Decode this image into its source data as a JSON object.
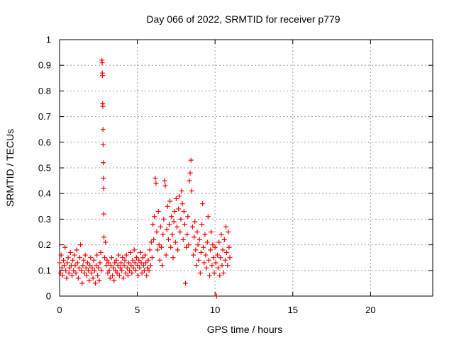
{
  "chart_data": {
    "type": "scatter",
    "title": "Day 066 of 2022, SRMTID for receiver p779",
    "xlabel": "GPS time / hours",
    "ylabel": "SRMTID / TECUs",
    "xlim": [
      0,
      24
    ],
    "ylim": [
      0,
      1
    ],
    "xticks": [
      0,
      5,
      10,
      15,
      20
    ],
    "xtick_labels": [
      "0",
      "5",
      "10",
      "15",
      "20"
    ],
    "yticks": [
      0,
      0.1,
      0.2,
      0.3,
      0.4,
      0.5,
      0.6,
      0.7,
      0.8,
      0.9,
      1
    ],
    "ytick_labels": [
      "0",
      "0.1",
      "0.2",
      "0.3",
      "0.4",
      "0.5",
      "0.6",
      "0.7",
      "0.8",
      "0.9",
      "1"
    ],
    "grid": true,
    "marker": "plus",
    "color": "#ff0000",
    "series": [
      {
        "name": "SRMTID",
        "points": [
          [
            0.0,
            0.13
          ],
          [
            0.05,
            0.09
          ],
          [
            0.1,
            0.16
          ],
          [
            0.15,
            0.11
          ],
          [
            0.2,
            0.08
          ],
          [
            0.25,
            0.14
          ],
          [
            0.3,
            0.12
          ],
          [
            0.35,
            0.19
          ],
          [
            0.4,
            0.1
          ],
          [
            0.45,
            0.07
          ],
          [
            0.5,
            0.13
          ],
          [
            0.55,
            0.15
          ],
          [
            0.6,
            0.09
          ],
          [
            0.65,
            0.11
          ],
          [
            0.7,
            0.17
          ],
          [
            0.75,
            0.12
          ],
          [
            0.8,
            0.08
          ],
          [
            0.85,
            0.14
          ],
          [
            0.9,
            0.1
          ],
          [
            0.95,
            0.16
          ],
          [
            1.0,
            0.12
          ],
          [
            1.05,
            0.09
          ],
          [
            1.1,
            0.18
          ],
          [
            1.15,
            0.13
          ],
          [
            1.2,
            0.07
          ],
          [
            1.25,
            0.11
          ],
          [
            1.3,
            0.15
          ],
          [
            1.35,
            0.2
          ],
          [
            1.4,
            0.1
          ],
          [
            1.45,
            0.05
          ],
          [
            1.5,
            0.12
          ],
          [
            1.55,
            0.14
          ],
          [
            1.6,
            0.09
          ],
          [
            1.65,
            0.16
          ],
          [
            1.7,
            0.11
          ],
          [
            1.75,
            0.08
          ],
          [
            1.8,
            0.13
          ],
          [
            1.85,
            0.1
          ],
          [
            1.9,
            0.06
          ],
          [
            1.95,
            0.12
          ],
          [
            2.0,
            0.15
          ],
          [
            2.05,
            0.09
          ],
          [
            2.1,
            0.11
          ],
          [
            2.15,
            0.07
          ],
          [
            2.2,
            0.14
          ],
          [
            2.25,
            0.1
          ],
          [
            2.3,
            0.05
          ],
          [
            2.35,
            0.12
          ],
          [
            2.4,
            0.16
          ],
          [
            2.45,
            0.08
          ],
          [
            2.5,
            0.11
          ],
          [
            2.55,
            0.06
          ],
          [
            2.6,
            0.13
          ],
          [
            2.65,
            0.17
          ],
          [
            2.7,
            0.1
          ],
          [
            2.72,
            0.92
          ],
          [
            2.74,
            0.91
          ],
          [
            2.75,
            0.87
          ],
          [
            2.76,
            0.86
          ],
          [
            2.77,
            0.75
          ],
          [
            2.78,
            0.74
          ],
          [
            2.79,
            0.65
          ],
          [
            2.8,
            0.59
          ],
          [
            2.81,
            0.52
          ],
          [
            2.82,
            0.46
          ],
          [
            2.83,
            0.42
          ],
          [
            2.84,
            0.32
          ],
          [
            2.85,
            0.23
          ],
          [
            2.9,
            0.15
          ],
          [
            2.95,
            0.21
          ],
          [
            3.0,
            0.12
          ],
          [
            3.05,
            0.14
          ],
          [
            3.1,
            0.09
          ],
          [
            3.15,
            0.13
          ],
          [
            3.2,
            0.1
          ],
          [
            3.25,
            0.07
          ],
          [
            3.3,
            0.12
          ],
          [
            3.35,
            0.15
          ],
          [
            3.4,
            0.08
          ],
          [
            3.45,
            0.11
          ],
          [
            3.5,
            0.06
          ],
          [
            3.55,
            0.13
          ],
          [
            3.6,
            0.1
          ],
          [
            3.65,
            0.14
          ],
          [
            3.7,
            0.09
          ],
          [
            3.75,
            0.12
          ],
          [
            3.8,
            0.16
          ],
          [
            3.85,
            0.08
          ],
          [
            3.9,
            0.11
          ],
          [
            3.95,
            0.13
          ],
          [
            4.0,
            0.1
          ],
          [
            4.05,
            0.15
          ],
          [
            4.1,
            0.07
          ],
          [
            4.15,
            0.12
          ],
          [
            4.2,
            0.14
          ],
          [
            4.25,
            0.09
          ],
          [
            4.3,
            0.16
          ],
          [
            4.35,
            0.11
          ],
          [
            4.4,
            0.08
          ],
          [
            4.45,
            0.13
          ],
          [
            4.5,
            0.1
          ],
          [
            4.55,
            0.17
          ],
          [
            4.6,
            0.12
          ],
          [
            4.65,
            0.09
          ],
          [
            4.7,
            0.14
          ],
          [
            4.75,
            0.11
          ],
          [
            4.8,
            0.18
          ],
          [
            4.85,
            0.13
          ],
          [
            4.9,
            0.1
          ],
          [
            4.95,
            0.15
          ],
          [
            5.0,
            0.12
          ],
          [
            5.05,
            0.08
          ],
          [
            5.1,
            0.14
          ],
          [
            5.15,
            0.11
          ],
          [
            5.2,
            0.17
          ],
          [
            5.25,
            0.13
          ],
          [
            5.3,
            0.09
          ],
          [
            5.35,
            0.15
          ],
          [
            5.4,
            0.12
          ],
          [
            5.45,
            0.1
          ],
          [
            5.5,
            0.16
          ],
          [
            5.55,
            0.13
          ],
          [
            5.6,
            0.08
          ],
          [
            5.65,
            0.11
          ],
          [
            5.7,
            0.14
          ],
          [
            5.75,
            0.1
          ],
          [
            5.8,
            0.18
          ],
          [
            5.85,
            0.12
          ],
          [
            5.9,
            0.21
          ],
          [
            5.95,
            0.15
          ],
          [
            6.0,
            0.28
          ],
          [
            6.05,
            0.22
          ],
          [
            6.1,
            0.31
          ],
          [
            6.15,
            0.46
          ],
          [
            6.2,
            0.44
          ],
          [
            6.25,
            0.25
          ],
          [
            6.3,
            0.18
          ],
          [
            6.35,
            0.33
          ],
          [
            6.4,
            0.2
          ],
          [
            6.45,
            0.14
          ],
          [
            6.5,
            0.27
          ],
          [
            6.55,
            0.19
          ],
          [
            6.6,
            0.12
          ],
          [
            6.65,
            0.24
          ],
          [
            6.7,
            0.3
          ],
          [
            6.75,
            0.45
          ],
          [
            6.8,
            0.43
          ],
          [
            6.85,
            0.16
          ],
          [
            6.9,
            0.26
          ],
          [
            6.95,
            0.35
          ],
          [
            7.0,
            0.22
          ],
          [
            7.05,
            0.28
          ],
          [
            7.1,
            0.37
          ],
          [
            7.15,
            0.19
          ],
          [
            7.2,
            0.31
          ],
          [
            7.25,
            0.24
          ],
          [
            7.3,
            0.15
          ],
          [
            7.35,
            0.29
          ],
          [
            7.4,
            0.33
          ],
          [
            7.45,
            0.21
          ],
          [
            7.5,
            0.38
          ],
          [
            7.55,
            0.27
          ],
          [
            7.6,
            0.18
          ],
          [
            7.65,
            0.34
          ],
          [
            7.7,
            0.39
          ],
          [
            7.75,
            0.25
          ],
          [
            7.8,
            0.3
          ],
          [
            7.85,
            0.41
          ],
          [
            7.9,
            0.36
          ],
          [
            7.95,
            0.22
          ],
          [
            8.0,
            0.33
          ],
          [
            8.05,
            0.28
          ],
          [
            8.1,
            0.05
          ],
          [
            8.15,
            0.19
          ],
          [
            8.2,
            0.24
          ],
          [
            8.25,
            0.31
          ],
          [
            8.3,
            0.2
          ],
          [
            8.35,
            0.45
          ],
          [
            8.4,
            0.48
          ],
          [
            8.45,
            0.53
          ],
          [
            8.5,
            0.41
          ],
          [
            8.55,
            0.27
          ],
          [
            8.6,
            0.16
          ],
          [
            8.65,
            0.23
          ],
          [
            8.7,
            0.29
          ],
          [
            8.75,
            0.18
          ],
          [
            8.8,
            0.12
          ],
          [
            8.85,
            0.25
          ],
          [
            8.9,
            0.2
          ],
          [
            8.95,
            0.14
          ],
          [
            9.0,
            0.22
          ],
          [
            9.05,
            0.09
          ],
          [
            9.1,
            0.17
          ],
          [
            9.15,
            0.28
          ],
          [
            9.2,
            0.36
          ],
          [
            9.25,
            0.19
          ],
          [
            9.3,
            0.13
          ],
          [
            9.35,
            0.24
          ],
          [
            9.4,
            0.16
          ],
          [
            9.45,
            0.11
          ],
          [
            9.5,
            0.21
          ],
          [
            9.55,
            0.31
          ],
          [
            9.6,
            0.14
          ],
          [
            9.65,
            0.08
          ],
          [
            9.7,
            0.18
          ],
          [
            9.75,
            0.25
          ],
          [
            9.8,
            0.12
          ],
          [
            9.85,
            0.2
          ],
          [
            9.9,
            0.15
          ],
          [
            9.95,
            0.09
          ],
          [
            10.0,
            0.19
          ],
          [
            10.05,
            0.13
          ],
          [
            10.1,
            0.0
          ],
          [
            10.15,
            0.16
          ],
          [
            10.2,
            0.11
          ],
          [
            10.25,
            0.21
          ],
          [
            10.3,
            0.08
          ],
          [
            10.35,
            0.15
          ],
          [
            10.4,
            0.24
          ],
          [
            10.45,
            0.12
          ],
          [
            10.5,
            0.18
          ],
          [
            10.55,
            0.09
          ],
          [
            10.6,
            0.22
          ],
          [
            10.65,
            0.14
          ],
          [
            10.7,
            0.27
          ],
          [
            10.75,
            0.17
          ],
          [
            10.8,
            0.12
          ],
          [
            10.85,
            0.25
          ],
          [
            10.9,
            0.19
          ],
          [
            10.95,
            0.15
          ]
        ]
      }
    ]
  }
}
